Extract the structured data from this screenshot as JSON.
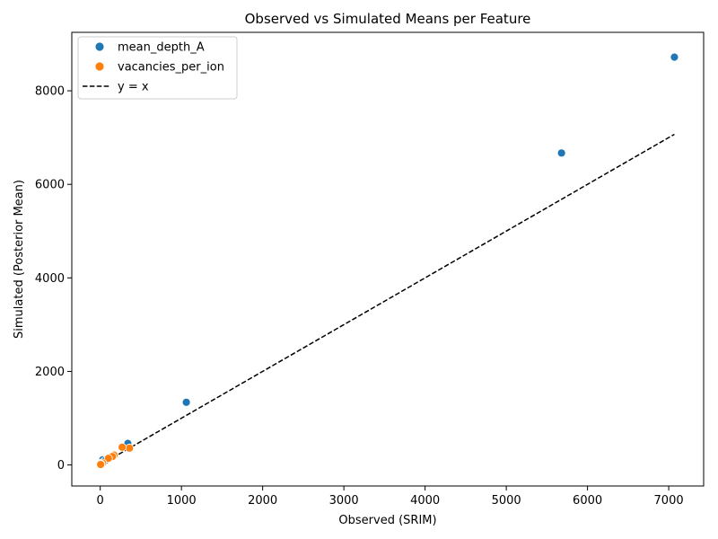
{
  "chart_data": {
    "type": "scatter",
    "title": "Observed vs Simulated Means per Feature",
    "xlabel": "Observed (SRIM)",
    "ylabel": "Simulated (Posterior Mean)",
    "xlim": [
      -350,
      7430
    ],
    "ylim": [
      -450,
      9250
    ],
    "xticks": [
      0,
      1000,
      2000,
      3000,
      4000,
      5000,
      6000,
      7000
    ],
    "yticks": [
      0,
      2000,
      4000,
      6000,
      8000
    ],
    "grid": false,
    "legend_position": "top-left",
    "series": [
      {
        "name": "mean_depth_A",
        "color": "#1f77b4",
        "points": [
          {
            "x": 7070,
            "y": 8720
          },
          {
            "x": 5680,
            "y": 6670
          },
          {
            "x": 1060,
            "y": 1340
          },
          {
            "x": 340,
            "y": 460
          },
          {
            "x": 30,
            "y": 110
          },
          {
            "x": 10,
            "y": 40
          },
          {
            "x": 60,
            "y": 90
          }
        ]
      },
      {
        "name": "vacancies_per_ion",
        "color": "#ff7f0e",
        "points": [
          {
            "x": 360,
            "y": 360
          },
          {
            "x": 270,
            "y": 380
          },
          {
            "x": 170,
            "y": 210
          },
          {
            "x": 150,
            "y": 180
          },
          {
            "x": 100,
            "y": 140
          },
          {
            "x": 30,
            "y": 40
          },
          {
            "x": 10,
            "y": 20
          },
          {
            "x": 5,
            "y": 10
          }
        ]
      }
    ],
    "reference_line": {
      "name": "y = x",
      "color": "#000000",
      "style": "dashed",
      "from": [
        0,
        0
      ],
      "to": [
        7070,
        7070
      ]
    }
  }
}
